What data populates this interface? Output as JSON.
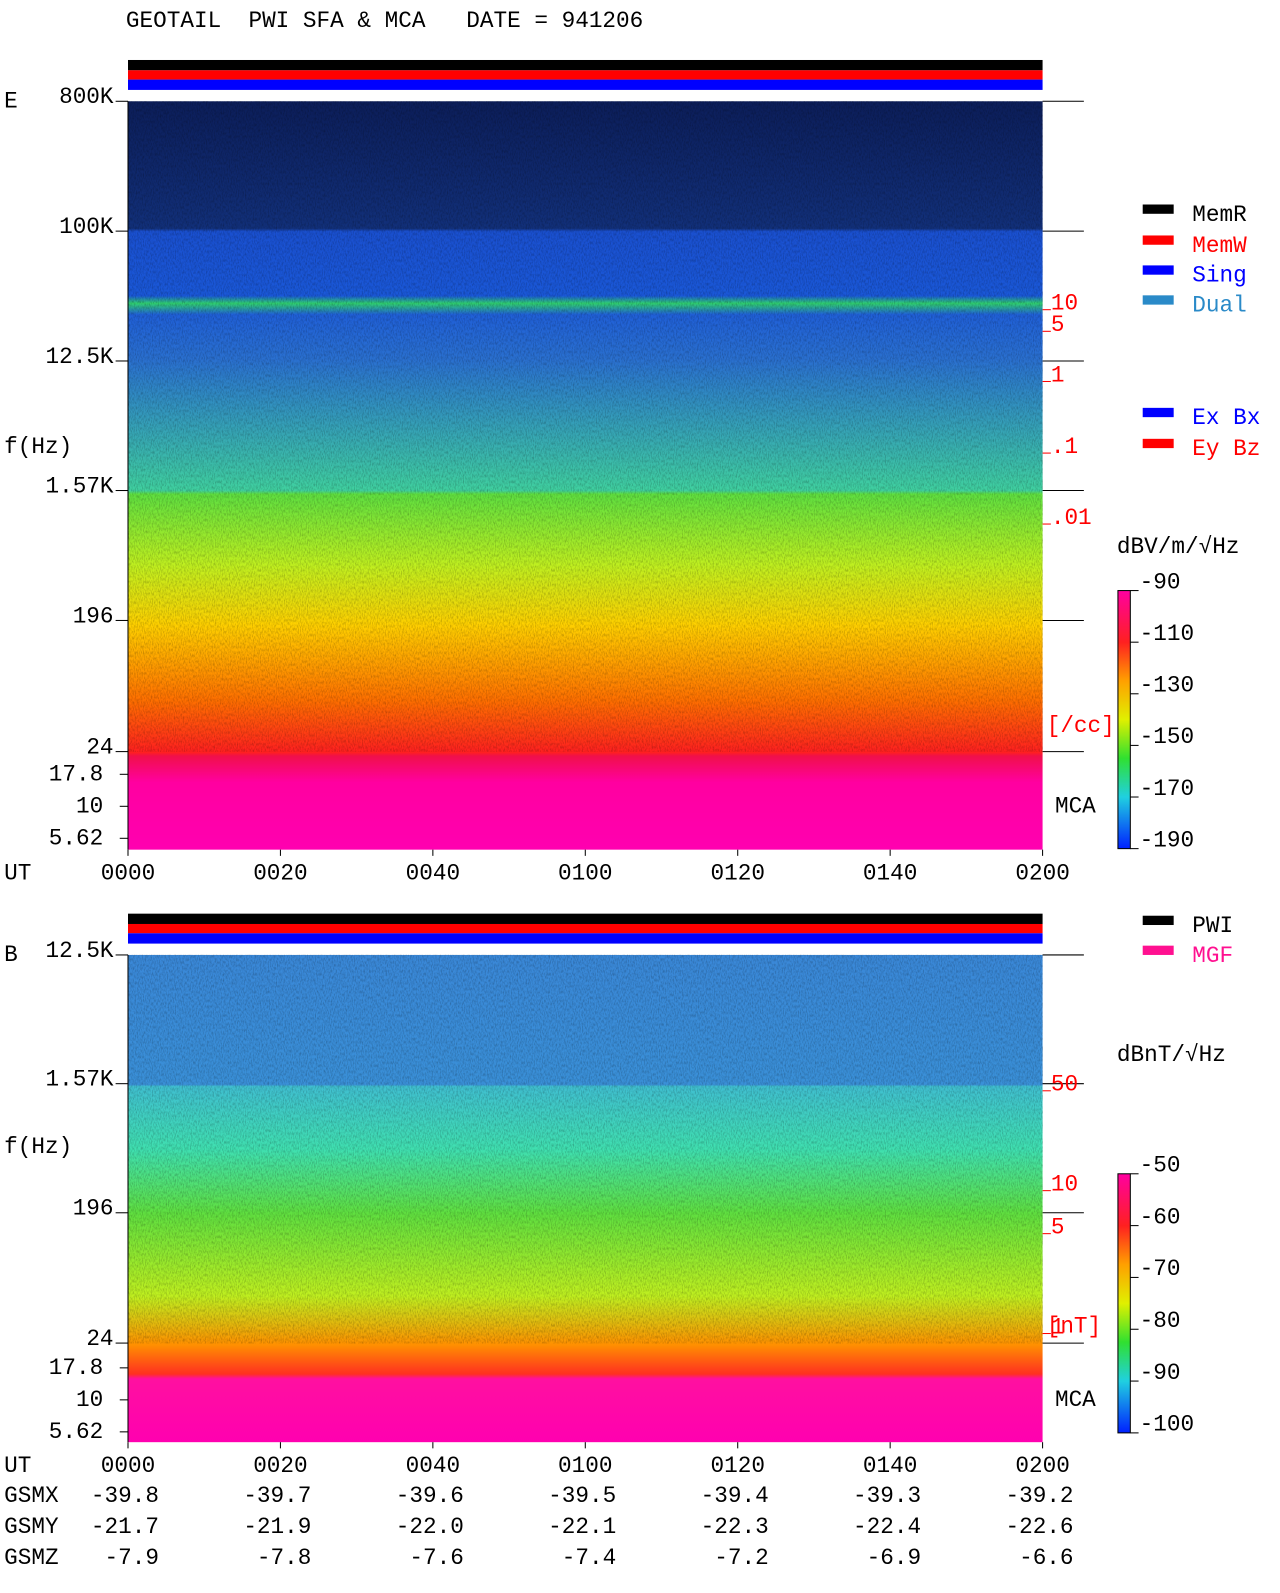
{
  "header": {
    "title": "GEOTAIL  PWI SFA & MCA   DATE = 941206"
  },
  "panels": [
    {
      "label": "E",
      "y_label": "f(Hz)",
      "ylim": [
        24,
        800000
      ],
      "yticks": [
        {
          "value": 800000,
          "label": "800K"
        },
        {
          "value": 100000,
          "label": "100K"
        },
        {
          "value": 12500,
          "label": "12.5K"
        },
        {
          "value": 1570,
          "label": "1.57K"
        },
        196,
        24
      ],
      "mca_ticks": [
        17.8,
        10,
        5.62
      ],
      "mca_label": "MCA",
      "x_label": "UT",
      "x_ticks": [
        "0000",
        "0020",
        "0040",
        "0100",
        "0120",
        "0140",
        "0200"
      ],
      "right_scale": {
        "unit": "[/cc]",
        "ticks": [
          10,
          5,
          1,
          {
            "value": 0.1,
            "label": ".1"
          },
          {
            "value": 0.01,
            "label": ".01"
          }
        ]
      },
      "legend": [
        {
          "name": "MemR",
          "color": "#000000"
        },
        {
          "name": "MemW",
          "color": "#ff0000"
        },
        {
          "name": "Sing",
          "color": "#0000ff"
        },
        {
          "name": "Dual",
          "color": "#2a8ac8"
        }
      ],
      "legend2": [
        {
          "name": "Ex Bx",
          "color": "#0000ff"
        },
        {
          "name": "Ey Bz",
          "color": "#ff0000"
        }
      ],
      "colorbar": {
        "unit": "dBV/m/√Hz",
        "lim": [
          -190,
          -90
        ],
        "ticks": [
          -90,
          -110,
          -130,
          -150,
          -170,
          -190
        ]
      }
    },
    {
      "label": "B",
      "y_label": "f(Hz)",
      "ylim": [
        24,
        12500
      ],
      "yticks": [
        {
          "value": 12500,
          "label": "12.5K"
        },
        {
          "value": 1570,
          "label": "1.57K"
        },
        196,
        24
      ],
      "mca_ticks": [
        17.8,
        10,
        5.62
      ],
      "mca_label": "MCA",
      "x_label": "UT",
      "x_ticks": [
        "0000",
        "0020",
        "0040",
        "0100",
        "0120",
        "0140",
        "0200"
      ],
      "right_scale": {
        "unit": "[nT]",
        "ticks": [
          50,
          10,
          5,
          1
        ]
      },
      "legend": [
        {
          "name": "PWI",
          "color": "#000000"
        },
        {
          "name": "MGF",
          "color": "#ff1090"
        }
      ],
      "colorbar": {
        "unit": "dBnT/√Hz",
        "lim": [
          -100,
          -50
        ],
        "ticks": [
          -50,
          -60,
          -70,
          -80,
          -90,
          -100
        ]
      }
    }
  ],
  "orbit": [
    {
      "name": "GSMX",
      "values": [
        -39.8,
        -39.7,
        -39.6,
        -39.5,
        -39.4,
        -39.3,
        -39.2
      ]
    },
    {
      "name": "GSMY",
      "values": [
        -21.7,
        -21.9,
        {
          "value": -22,
          "label": "-22.0"
        },
        -22.1,
        -22.3,
        -22.4,
        -22.6
      ]
    },
    {
      "name": "GSMZ",
      "values": [
        -7.9,
        -7.8,
        -7.6,
        -7.4,
        -7.2,
        -6.9,
        -6.6
      ]
    }
  ]
}
